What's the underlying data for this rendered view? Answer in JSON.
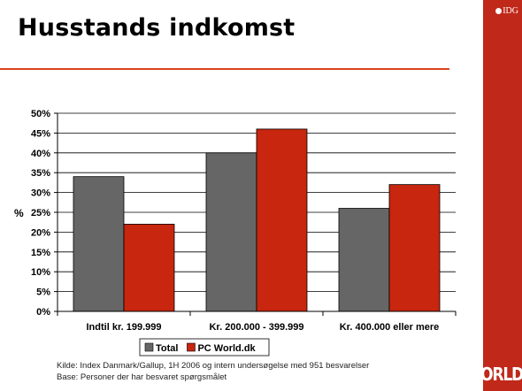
{
  "slide": {
    "title": "Husstands indkomst",
    "idg_logo": "IDG",
    "pcworld_logo": "PC WORLD",
    "source_line1": "Kilde: Index Danmark/Gallup, 1H 2006 og intern undersøgelse med 951 besvarelser",
    "source_line2": "Base: Personer der har besvaret spørgsmålet"
  },
  "colors": {
    "accent": "#c0281a",
    "series_total": "#666666",
    "series_pcworld": "#c8260e",
    "rule": "#d9441c"
  },
  "chart_data": {
    "type": "bar",
    "categories": [
      "Indtil kr. 199.999",
      "Kr. 200.000 - 399.999",
      "Kr. 400.000 eller mere"
    ],
    "series": [
      {
        "name": "Total",
        "values": [
          34,
          40,
          26
        ]
      },
      {
        "name": "PC World.dk",
        "values": [
          22,
          46,
          32
        ]
      }
    ],
    "ylabel": "%",
    "xlabel": "",
    "ylim": [
      0,
      50
    ],
    "yticks": [
      0,
      5,
      10,
      15,
      20,
      25,
      30,
      35,
      40,
      45,
      50
    ],
    "ytick_labels": [
      "0%",
      "5%",
      "10%",
      "15%",
      "20%",
      "25%",
      "30%",
      "35%",
      "40%",
      "45%",
      "50%"
    ],
    "grid": true,
    "legend_position": "bottom"
  }
}
